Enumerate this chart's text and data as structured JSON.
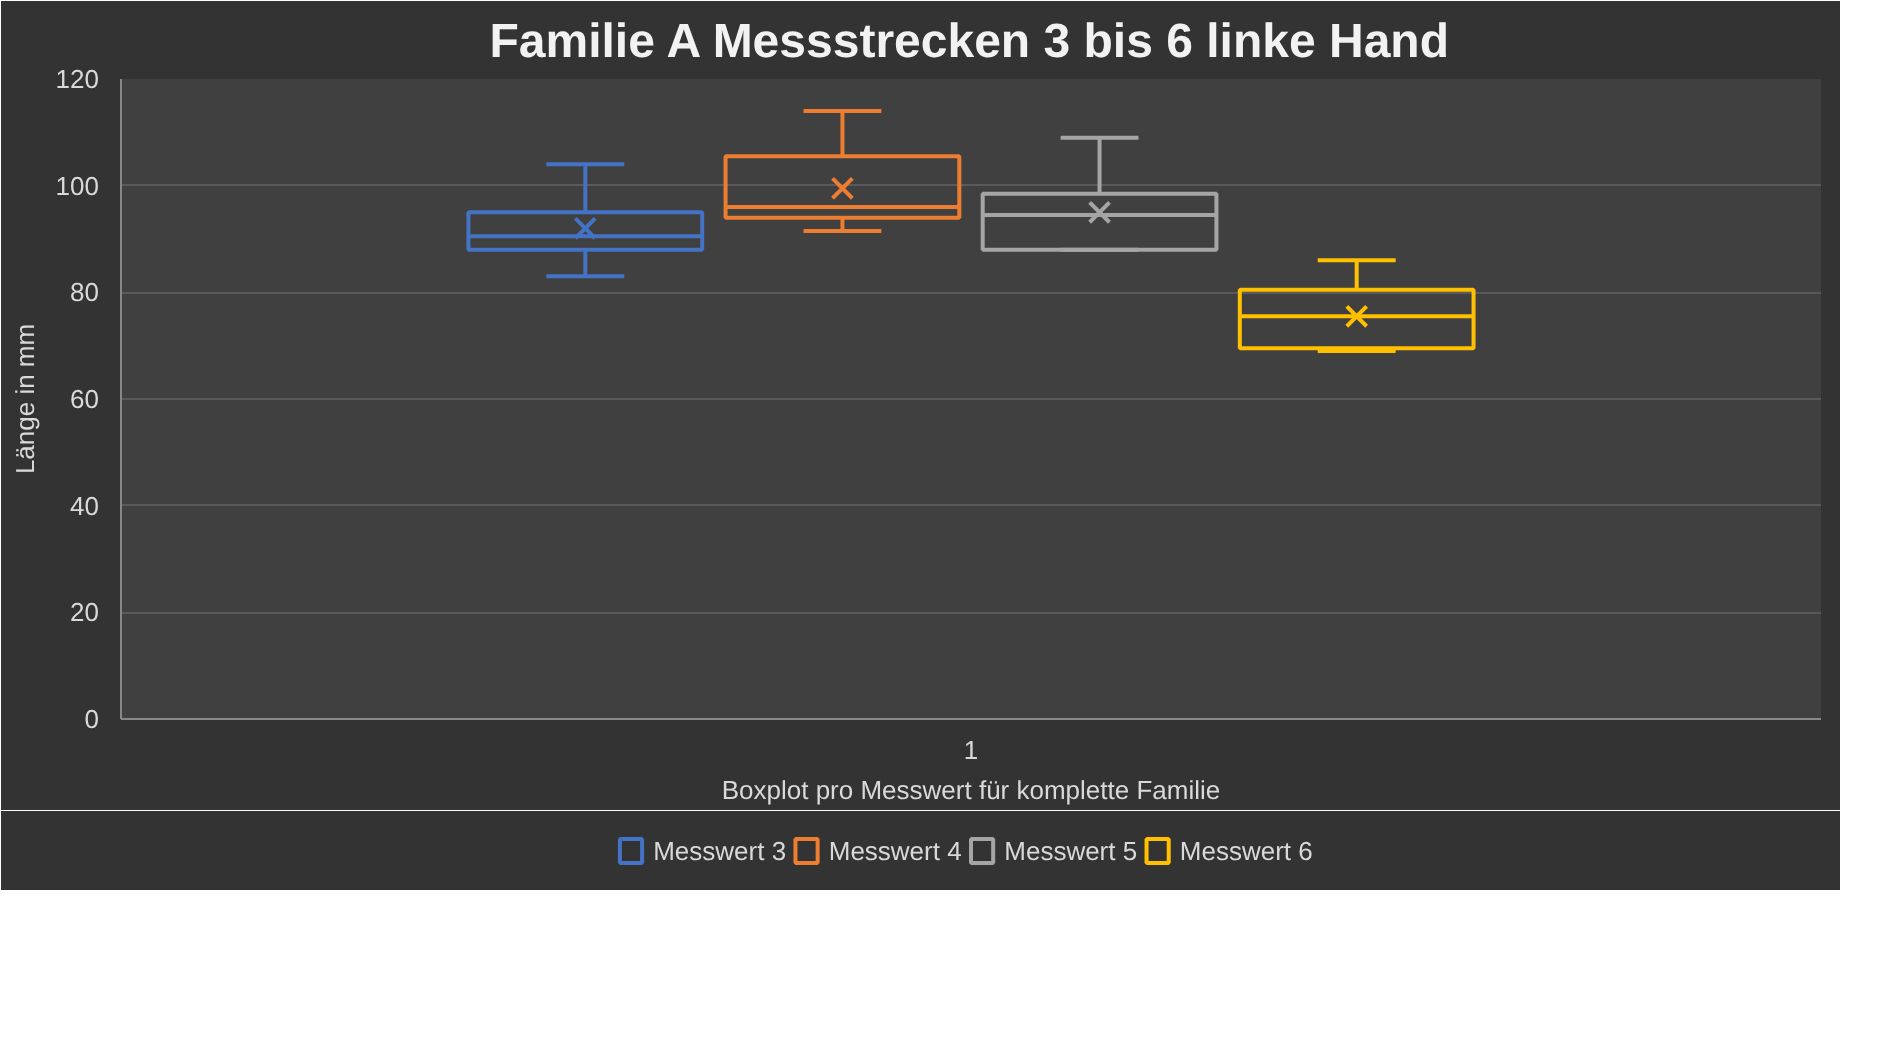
{
  "chart_data": {
    "type": "box",
    "title": "Familie A Messstrecken 3 bis 6 linke Hand",
    "xlabel": "Boxplot pro Messwert für komplette Familie",
    "ylabel": "Länge in mm",
    "categories": [
      "1"
    ],
    "ylim": [
      0,
      120
    ],
    "yticks": [
      0,
      20,
      40,
      60,
      80,
      100,
      120
    ],
    "grid": "y",
    "legend": "bottom",
    "series": [
      {
        "name": "Messwert 3",
        "color": "#4472c4",
        "boxes": [
          {
            "low": 83,
            "q1": 88,
            "median": 90.5,
            "q3": 95,
            "high": 104,
            "mean": 92
          }
        ]
      },
      {
        "name": "Messwert 4",
        "color": "#ed7d31",
        "boxes": [
          {
            "low": 91.5,
            "q1": 94,
            "median": 96,
            "q3": 105.5,
            "high": 114,
            "mean": 99.5
          }
        ]
      },
      {
        "name": "Messwert 5",
        "color": "#a5a5a5",
        "boxes": [
          {
            "low": 88,
            "q1": 88,
            "median": 94.5,
            "q3": 98.5,
            "high": 109,
            "mean": 95
          }
        ]
      },
      {
        "name": "Messwert 6",
        "color": "#ffc000",
        "boxes": [
          {
            "low": 69,
            "q1": 69.5,
            "median": 75.5,
            "q3": 80.5,
            "high": 86,
            "mean": 75.5
          }
        ]
      }
    ]
  }
}
